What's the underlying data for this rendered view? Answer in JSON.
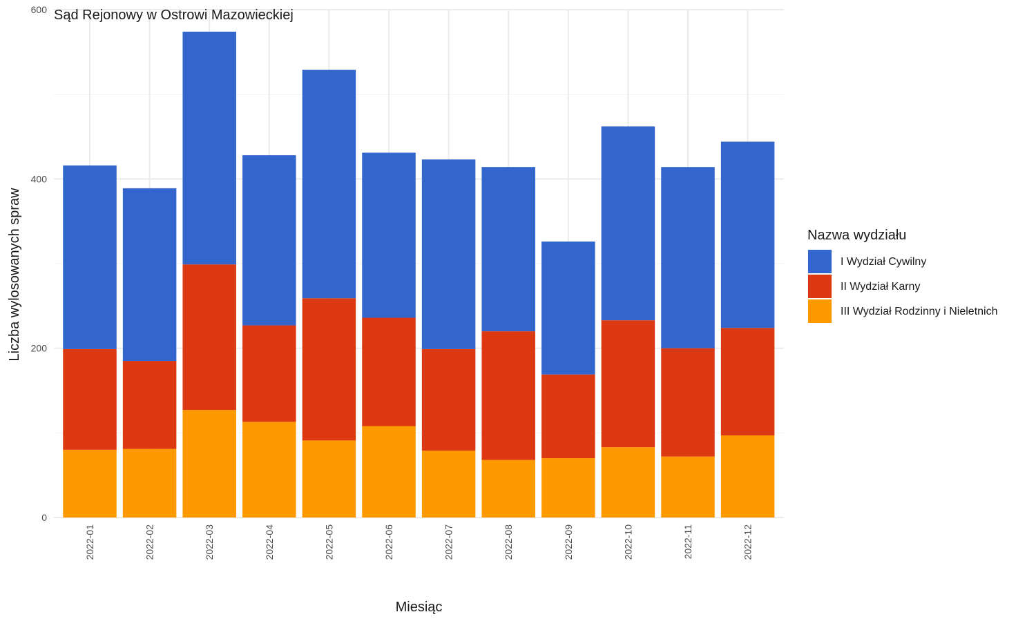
{
  "chart_data": {
    "type": "bar",
    "stacked": true,
    "title": "Sąd Rejonowy w Ostrowi Mazowieckiej",
    "xlabel": "Miesiąc",
    "ylabel": "Liczba wylosowanych spraw",
    "ylim": [
      0,
      600
    ],
    "y_ticks": [
      "0",
      "200",
      "400",
      "600"
    ],
    "grid": true,
    "legend": {
      "title": "Nazwa wydziału",
      "placement": "right"
    },
    "categories": [
      "2022-01",
      "2022-02",
      "2022-03",
      "2022-04",
      "2022-05",
      "2022-06",
      "2022-07",
      "2022-08",
      "2022-09",
      "2022-10",
      "2022-11",
      "2022-12"
    ],
    "series": [
      {
        "name": "III Wydział Rodzinny i Nieletnich",
        "color": "#FF9900",
        "values": [
          80,
          81,
          127,
          113,
          91,
          108,
          79,
          68,
          70,
          83,
          72,
          97
        ]
      },
      {
        "name": "II Wydział Karny",
        "color": "#DC3912",
        "values": [
          119,
          104,
          172,
          114,
          168,
          128,
          120,
          152,
          99,
          150,
          128,
          127
        ]
      },
      {
        "name": "I Wydział Cywilny",
        "color": "#3366CC",
        "values": [
          217,
          204,
          275,
          201,
          270,
          195,
          224,
          194,
          157,
          229,
          214,
          220
        ]
      }
    ]
  }
}
